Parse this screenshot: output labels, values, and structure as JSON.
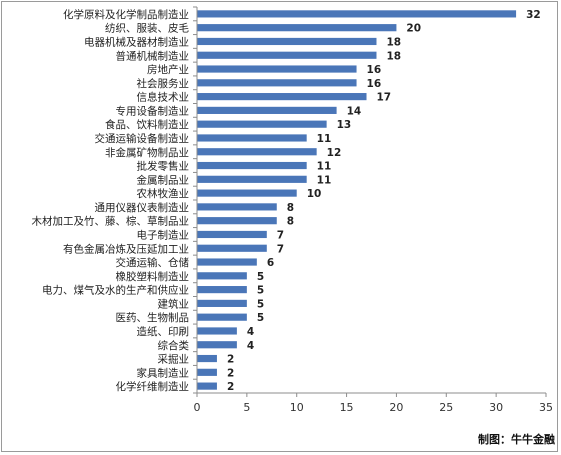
{
  "credit": "制图：牛牛金融",
  "chart_data": {
    "type": "bar",
    "orientation": "horizontal",
    "bar_color": "#4a76b8",
    "xlim": [
      0,
      35
    ],
    "xticks": [
      0,
      5,
      10,
      15,
      20,
      25,
      30,
      35
    ],
    "grid": false,
    "categories": [
      "化学原料及化学制品制造业",
      "纺织、服装、皮毛",
      "电器机械及器材制造业",
      "普通机械制造业",
      "房地产业",
      "社会服务业",
      "信息技术业",
      "专用设备制造业",
      "食品、饮料制造业",
      "交通运输设备制造业",
      "非金属矿物制品业",
      "批发零售业",
      "金属制品业",
      "农林牧渔业",
      "通用仪器仪表制造业",
      "木材加工及竹、藤、棕、草制品业",
      "电子制造业",
      "有色金属冶炼及压延加工业",
      "交通运输、仓储",
      "橡胶塑料制造业",
      "电力、煤气及水的生产和供应业",
      "建筑业",
      "医药、生物制品",
      "造纸、印刷",
      "综合类",
      "采掘业",
      "家具制造业",
      "化学纤维制造业"
    ],
    "values": [
      32,
      20,
      18,
      18,
      16,
      16,
      17,
      14,
      13,
      11,
      12,
      11,
      11,
      10,
      8,
      8,
      7,
      7,
      6,
      5,
      5,
      5,
      5,
      4,
      4,
      2,
      2,
      2
    ]
  }
}
